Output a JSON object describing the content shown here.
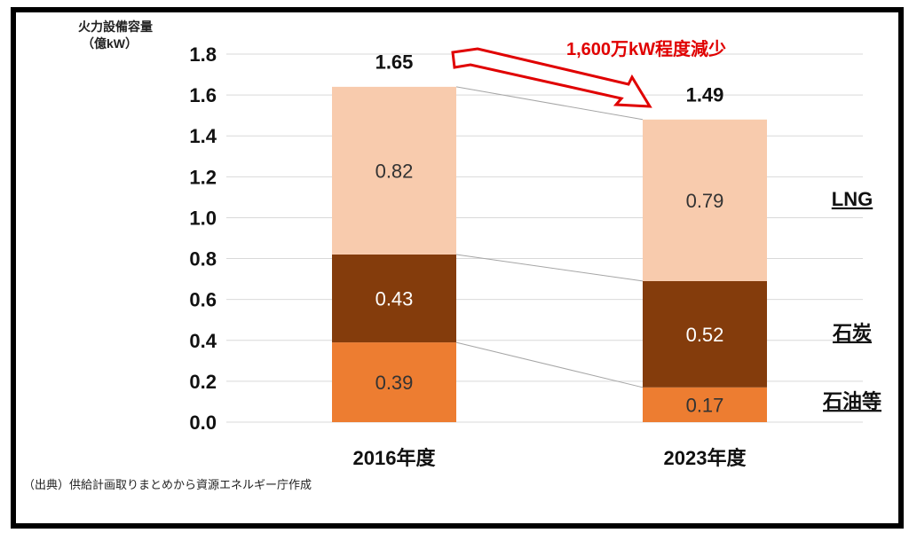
{
  "chart_data": {
    "type": "bar",
    "stacked": true,
    "ylabel_line1": "火力設備容量",
    "ylabel_line2": "（億kW）",
    "ylim": [
      0,
      1.8
    ],
    "yticks": [
      "0.0",
      "0.2",
      "0.4",
      "0.6",
      "0.8",
      "1.0",
      "1.2",
      "1.4",
      "1.6",
      "1.8"
    ],
    "grid": true,
    "categories": [
      "2016年度",
      "2023年度"
    ],
    "series": [
      {
        "name": "石油等",
        "values": [
          0.39,
          0.17
        ],
        "labels": [
          "0.39",
          "0.17"
        ],
        "color": "#ED7D31",
        "label_color": "#333333"
      },
      {
        "name": "石炭",
        "values": [
          0.43,
          0.52
        ],
        "labels": [
          "0.43",
          "0.52"
        ],
        "color": "#843C0C",
        "label_color": "#ffffff"
      },
      {
        "name": "LNG",
        "values": [
          0.82,
          0.79
        ],
        "labels": [
          "0.82",
          "0.79"
        ],
        "color": "#F8CBAD",
        "label_color": "#333333"
      }
    ],
    "totals": [
      "1.65",
      "1.49"
    ],
    "total_values": [
      1.65,
      1.49
    ],
    "annotation": "1,600万kW程度減少",
    "source": "（出典）供給計画取りまとめから資源エネルギー庁作成"
  }
}
